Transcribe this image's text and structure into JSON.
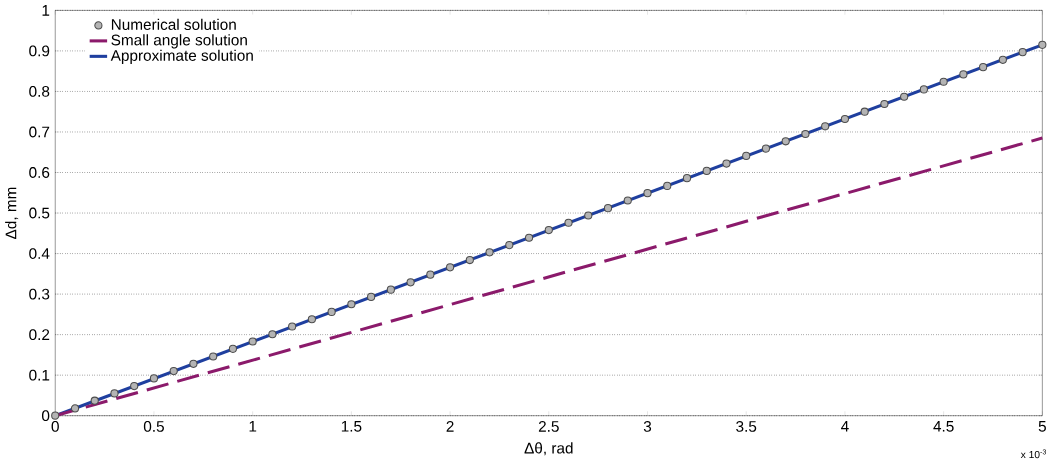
{
  "chart_data": {
    "type": "line",
    "xlabel": "Δθ, rad",
    "ylabel": "Δd, mm",
    "annotations": [
      "x 10$^{-3}$"
    ],
    "xlim": [
      0,
      5
    ],
    "ylim": [
      0,
      1
    ],
    "xticks": [
      0,
      0.5,
      1,
      1.5,
      2,
      2.5,
      3,
      3.5,
      4,
      4.5,
      5
    ],
    "yticks": [
      0,
      0.1,
      0.2,
      0.3,
      0.4,
      0.5,
      0.6,
      0.7,
      0.8,
      0.9,
      1
    ],
    "grid": "y",
    "legend": "top left",
    "series": [
      {
        "name": "Numerical solution",
        "type": "scatter",
        "marker": "circle",
        "color": "#b4b4b4",
        "x": [
          0,
          0.1,
          0.2,
          0.3,
          0.4,
          0.5,
          0.6,
          0.7,
          0.8,
          0.9,
          1,
          1.1,
          1.2,
          1.3,
          1.4,
          1.5,
          1.6,
          1.7,
          1.8,
          1.9,
          2,
          2.1,
          2.2,
          2.3,
          2.4,
          2.5,
          2.6,
          2.7,
          2.8,
          2.9,
          3,
          3.1,
          3.2,
          3.3,
          3.4,
          3.5,
          3.6,
          3.7,
          3.8,
          3.9,
          4,
          4.1,
          4.2,
          4.3,
          4.4,
          4.5,
          4.6,
          4.7,
          4.8,
          4.9,
          5
        ],
        "values": [
          0,
          0.018,
          0.037,
          0.055,
          0.073,
          0.092,
          0.11,
          0.128,
          0.146,
          0.165,
          0.183,
          0.201,
          0.22,
          0.238,
          0.256,
          0.275,
          0.293,
          0.311,
          0.329,
          0.348,
          0.366,
          0.384,
          0.403,
          0.421,
          0.439,
          0.458,
          0.476,
          0.494,
          0.512,
          0.531,
          0.549,
          0.567,
          0.586,
          0.604,
          0.622,
          0.641,
          0.659,
          0.677,
          0.695,
          0.714,
          0.732,
          0.75,
          0.769,
          0.787,
          0.805,
          0.824,
          0.842,
          0.86,
          0.878,
          0.897,
          0.915
        ]
      },
      {
        "name": "Small angle solution",
        "line_style": "dashed",
        "color": "#8b1a6b",
        "x": [
          0,
          5
        ],
        "values": [
          0,
          0.685
        ]
      },
      {
        "name": "Approximate solution",
        "line_style": "solid",
        "color": "#1f3f9f",
        "x": [
          0,
          5
        ],
        "values": [
          0,
          0.915
        ]
      }
    ]
  }
}
